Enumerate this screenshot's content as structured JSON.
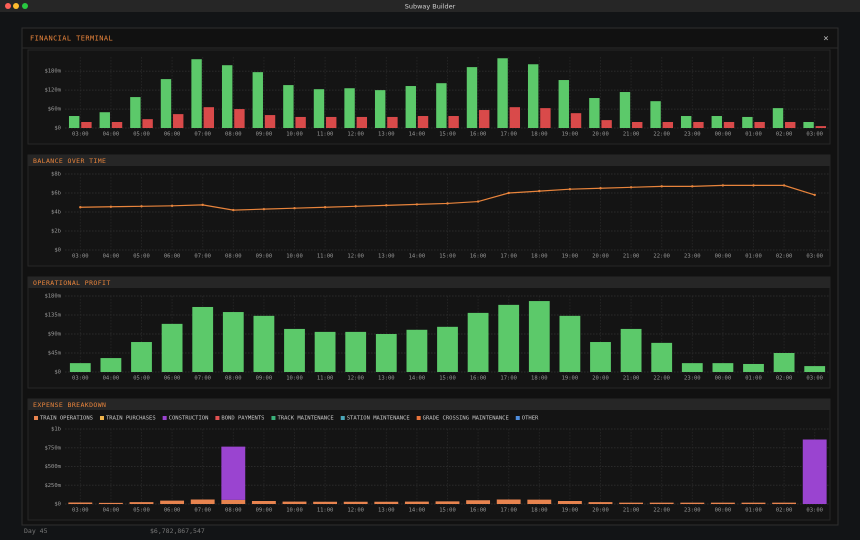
{
  "window": {
    "title": "Subway Builder"
  },
  "modal": {
    "title": "FINANCIAL TERMINAL",
    "close": "×"
  },
  "status": {
    "day": "Day 45",
    "balance": "$6,782,867,547"
  },
  "chart_data": [
    {
      "type": "bar",
      "categories": [
        "03:00",
        "04:00",
        "05:00",
        "06:00",
        "07:00",
        "08:00",
        "09:00",
        "10:00",
        "11:00",
        "12:00",
        "13:00",
        "14:00",
        "15:00",
        "16:00",
        "17:00",
        "18:00",
        "19:00",
        "20:00",
        "21:00",
        "22:00",
        "23:00",
        "00:00",
        "01:00",
        "02:00",
        "03:00"
      ],
      "series": [
        {
          "color": "#5cc96a",
          "values": [
            38,
            50,
            98,
            155,
            218,
            199,
            177,
            136,
            123,
            126,
            120,
            133,
            142,
            193,
            221,
            202,
            152,
            95,
            114,
            85,
            38,
            38,
            35,
            63,
            19
          ]
        },
        {
          "color": "#d94a4a",
          "values": [
            19,
            19,
            28,
            44,
            66,
            60,
            41,
            35,
            35,
            35,
            35,
            38,
            38,
            57,
            66,
            63,
            47,
            25,
            19,
            19,
            19,
            19,
            19,
            19,
            6
          ]
        }
      ],
      "ylim": [
        0,
        225
      ],
      "yticks": [
        {
          "value": 0,
          "label": "$0"
        },
        {
          "value": 60,
          "label": "$60m"
        },
        {
          "value": 120,
          "label": "$120m"
        },
        {
          "value": 180,
          "label": "$180m"
        }
      ],
      "grid": true
    },
    {
      "type": "line",
      "title": "BALANCE OVER TIME",
      "categories": [
        "03:00",
        "04:00",
        "05:00",
        "06:00",
        "07:00",
        "08:00",
        "09:00",
        "10:00",
        "11:00",
        "12:00",
        "13:00",
        "14:00",
        "15:00",
        "16:00",
        "17:00",
        "18:00",
        "19:00",
        "20:00",
        "21:00",
        "22:00",
        "23:00",
        "00:00",
        "01:00",
        "02:00",
        "03:00"
      ],
      "values": [
        4.5,
        4.55,
        4.6,
        4.65,
        4.75,
        4.2,
        4.3,
        4.4,
        4.5,
        4.6,
        4.7,
        4.8,
        4.9,
        5.1,
        6.0,
        6.2,
        6.4,
        6.5,
        6.6,
        6.7,
        6.7,
        6.8,
        6.8,
        6.8,
        5.8
      ],
      "color": "#e8843c",
      "ylim": [
        0,
        8
      ],
      "yticks": [
        {
          "value": 0,
          "label": "$0"
        },
        {
          "value": 2,
          "label": "$2b"
        },
        {
          "value": 4,
          "label": "$4b"
        },
        {
          "value": 6,
          "label": "$6b"
        },
        {
          "value": 8,
          "label": "$8b"
        }
      ],
      "grid": true
    },
    {
      "type": "bar",
      "title": "OPERATIONAL PROFIT",
      "categories": [
        "03:00",
        "04:00",
        "05:00",
        "06:00",
        "07:00",
        "08:00",
        "09:00",
        "10:00",
        "11:00",
        "12:00",
        "13:00",
        "14:00",
        "15:00",
        "16:00",
        "17:00",
        "18:00",
        "19:00",
        "20:00",
        "21:00",
        "22:00",
        "23:00",
        "00:00",
        "01:00",
        "02:00",
        "03:00"
      ],
      "series": [
        {
          "color": "#5cc96a",
          "values": [
            21,
            33,
            71,
            114,
            154,
            142,
            133,
            102,
            95,
            95,
            90,
            100,
            107,
            140,
            159,
            168,
            133,
            71,
            102,
            69,
            21,
            21,
            19,
            45,
            14
          ]
        }
      ],
      "ylim": [
        0,
        180
      ],
      "yticks": [
        {
          "value": 0,
          "label": "$0"
        },
        {
          "value": 45,
          "label": "$45m"
        },
        {
          "value": 90,
          "label": "$90m"
        },
        {
          "value": 135,
          "label": "$135m"
        },
        {
          "value": 180,
          "label": "$180m"
        }
      ],
      "grid": true
    },
    {
      "type": "stacked_bar",
      "title": "EXPENSE BREAKDOWN",
      "categories": [
        "03:00",
        "04:00",
        "05:00",
        "06:00",
        "07:00",
        "08:00",
        "09:00",
        "10:00",
        "11:00",
        "12:00",
        "13:00",
        "14:00",
        "15:00",
        "16:00",
        "17:00",
        "18:00",
        "19:00",
        "20:00",
        "21:00",
        "22:00",
        "23:00",
        "00:00",
        "01:00",
        "02:00",
        "03:00"
      ],
      "series": [
        {
          "name": "TRAIN OPERATIONS",
          "color": "#e8844f",
          "values": [
            20,
            15,
            25,
            45,
            60,
            55,
            40,
            32,
            30,
            30,
            30,
            32,
            35,
            50,
            60,
            58,
            40,
            25,
            18,
            18,
            18,
            18,
            18,
            18,
            0
          ]
        },
        {
          "name": "TRAIN PURCHASES",
          "color": "#f0b44c",
          "values": [
            0,
            0,
            0,
            0,
            0,
            0,
            0,
            0,
            0,
            0,
            0,
            0,
            0,
            0,
            0,
            0,
            0,
            0,
            0,
            0,
            0,
            0,
            0,
            0,
            0
          ]
        },
        {
          "name": "CONSTRUCTION",
          "color": "#9a44d0",
          "values": [
            0,
            0,
            0,
            0,
            0,
            710,
            0,
            0,
            0,
            0,
            0,
            0,
            0,
            0,
            0,
            0,
            0,
            0,
            0,
            0,
            0,
            0,
            0,
            0,
            860
          ]
        },
        {
          "name": "BOND PAYMENTS",
          "color": "#e05252",
          "values": [
            0,
            0,
            0,
            0,
            0,
            0,
            0,
            0,
            0,
            0,
            0,
            0,
            0,
            0,
            0,
            0,
            0,
            0,
            0,
            0,
            0,
            0,
            0,
            0,
            0
          ]
        },
        {
          "name": "TRACK MAINTENANCE",
          "color": "#3ab07a",
          "values": [
            0,
            0,
            0,
            0,
            0,
            0,
            0,
            0,
            0,
            0,
            0,
            0,
            0,
            0,
            0,
            0,
            0,
            0,
            0,
            0,
            0,
            0,
            0,
            0,
            0
          ]
        },
        {
          "name": "STATION MAINTENANCE",
          "color": "#4aa6b8",
          "values": [
            0,
            0,
            0,
            0,
            0,
            0,
            0,
            0,
            0,
            0,
            0,
            0,
            0,
            0,
            0,
            0,
            0,
            0,
            0,
            0,
            0,
            0,
            0,
            0,
            0
          ]
        },
        {
          "name": "GRADE CROSSING MAINTENANCE",
          "color": "#e8743c",
          "values": [
            0,
            0,
            0,
            0,
            0,
            0,
            0,
            0,
            0,
            0,
            0,
            0,
            0,
            0,
            0,
            0,
            0,
            0,
            0,
            0,
            0,
            0,
            0,
            0,
            0
          ]
        },
        {
          "name": "OTHER",
          "color": "#4f8ede",
          "values": [
            0,
            0,
            0,
            0,
            0,
            0,
            0,
            0,
            0,
            0,
            0,
            0,
            0,
            0,
            0,
            0,
            0,
            0,
            0,
            0,
            0,
            0,
            0,
            0,
            0
          ]
        }
      ],
      "ylim": [
        0,
        1000
      ],
      "yticks": [
        {
          "value": 0,
          "label": "$0"
        },
        {
          "value": 250,
          "label": "$250m"
        },
        {
          "value": 500,
          "label": "$500m"
        },
        {
          "value": 750,
          "label": "$750m"
        },
        {
          "value": 1000,
          "label": "$1b"
        }
      ],
      "grid": true
    }
  ]
}
